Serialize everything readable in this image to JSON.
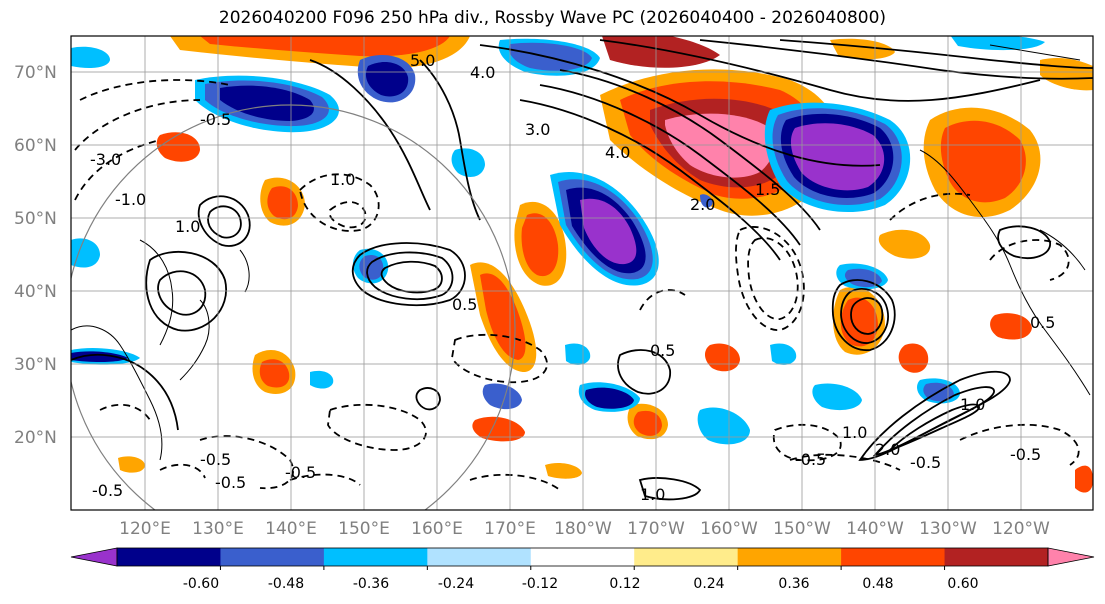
{
  "title": "2026040200 F096 250 hPa div., Rossby Wave PC (2026040400 - 2026040800)",
  "lat_labels": [
    "70°N",
    "60°N",
    "50°N",
    "40°N",
    "30°N",
    "20°N"
  ],
  "lon_labels": [
    "120°E",
    "130°E",
    "140°E",
    "150°E",
    "160°E",
    "170°E",
    "180°W",
    "170°W",
    "160°W",
    "150°W",
    "140°W",
    "130°W",
    "120°W"
  ],
  "colorbar": {
    "colors": [
      "#9932cc",
      "#00008b",
      "#3a5fcd",
      "#00bfff",
      "#b0e2ff",
      "#ffffff",
      "#ffec8b",
      "#ffa500",
      "#ff4500",
      "#b22222",
      "#ff82ab"
    ],
    "labels": [
      "-0.60",
      "-0.48",
      "-0.36",
      "-0.24",
      "-0.12",
      "0.12",
      "0.24",
      "0.36",
      "0.48",
      "0.60"
    ]
  },
  "contour_labels": [
    "5.0",
    "4.0",
    "3.0",
    "2.0",
    "1.0",
    "0.5",
    "-0.5",
    "-1.0",
    "-3.0",
    "-0.5",
    "1.0",
    "-0.5",
    "-0.5",
    "0.5",
    "1.5",
    "2.0",
    "-0.5",
    "1.0",
    "-0.5",
    "-0.5",
    "4.0",
    "1.0",
    "0.5",
    "-0.5",
    "1.0"
  ],
  "colors": {
    "grid": "#999999",
    "land": "#000000",
    "range_circle": "#808080"
  }
}
